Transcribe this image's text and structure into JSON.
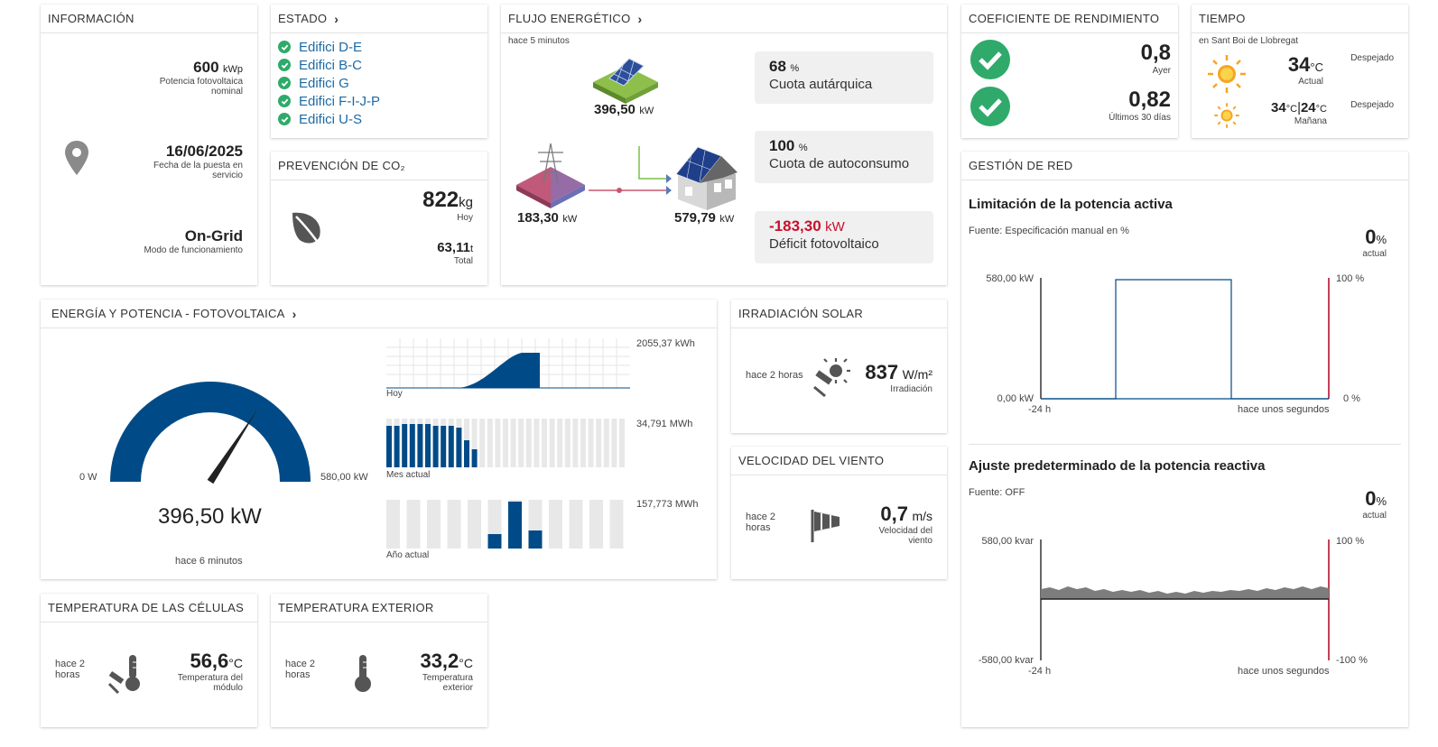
{
  "info": {
    "title": "INFORMACIÓN",
    "power_value": "600",
    "power_unit": "kWp",
    "power_label": "Potencia fotovoltaica nominal",
    "date_value": "16/06/2025",
    "date_label": "Fecha de la puesta en servicio",
    "mode_value": "On-Grid",
    "mode_label": "Modo de funcionamiento"
  },
  "estado": {
    "title": "ESTADO",
    "items": [
      "Edifici D-E",
      "Edifici B-C",
      "Edifici G",
      "Edifici F-I-J-P",
      "Edifici U-S"
    ]
  },
  "co2": {
    "title": "PREVENCIÓN DE CO₂",
    "today_value": "822",
    "today_unit": "kg",
    "today_label": "Hoy",
    "total_value": "63,11",
    "total_unit": "t",
    "total_label": "Total"
  },
  "flujo": {
    "title": "FLUJO ENERGÉTICO",
    "time": "hace 5 minutos",
    "pv_value": "396,50",
    "pv_unit": "kW",
    "grid_value": "183,30",
    "grid_unit": "kW",
    "house_value": "579,79",
    "house_unit": "kW",
    "q1_value": "68",
    "q1_unit": "%",
    "q1_label": "Cuota autárquica",
    "q2_value": "100",
    "q2_unit": "%",
    "q2_label": "Cuota de autoconsumo",
    "q3_value": "-183,30",
    "q3_unit": "kW",
    "q3_label": "Déficit fotovoltaico"
  },
  "coef": {
    "title": "COEFICIENTE DE RENDIMIENTO",
    "v1": "0,8",
    "l1": "Ayer",
    "v2": "0,82",
    "l2": "Últimos 30 días"
  },
  "tiempo": {
    "title": "TIEMPO",
    "location": "en Sant Boi de Llobregat",
    "now_temp": "34",
    "now_unit": "°C",
    "now_label": "Actual",
    "now_cond": "Despejado",
    "tom_temp_a": "34",
    "tom_unit_a": "°C",
    "tom_temp_b": "24",
    "tom_unit_b": "°C",
    "tom_label": "Mañana",
    "tom_cond": "Despejado"
  },
  "energia": {
    "title": "ENERGÍA Y POTENCIA - FOTOVOLTAICA",
    "gauge_min": "0 W",
    "gauge_max": "580,00 kW",
    "gauge_value": "396,50 kW",
    "gauge_time": "hace 6 minutos",
    "gauge_fraction": 0.684,
    "hoy_total": "2055,37 kWh",
    "hoy_label": "Hoy",
    "mes_total": "34,791 MWh",
    "mes_label": "Mes actual",
    "anio_total": "157,773 MWh",
    "anio_label": "Año actual"
  },
  "irradiacion": {
    "title": "IRRADIACIÓN SOLAR",
    "time": "hace 2 horas",
    "value": "837",
    "unit": "W/m²",
    "label": "Irradiación"
  },
  "viento": {
    "title": "VELOCIDAD DEL VIENTO",
    "time": "hace 2 horas",
    "value": "0,7",
    "unit": "m/s",
    "label": "Velocidad del viento"
  },
  "temp_celulas": {
    "title": "TEMPERATURA DE LAS CÉLULAS",
    "time": "hace 2 horas",
    "value": "56,6",
    "unit": "°C",
    "label": "Temperatura del módulo"
  },
  "temp_exterior": {
    "title": "TEMPERATURA EXTERIOR",
    "time": "hace 2 horas",
    "value": "33,2",
    "unit": "°C",
    "label": "Temperatura exterior"
  },
  "gestion": {
    "title": "GESTIÓN DE RED",
    "activa_title": "Limitación de la potencia activa",
    "activa_source": "Fuente: Especificación manual en %",
    "activa_pct": "0",
    "activa_pct_unit": "%",
    "activa_pct_label": "actual",
    "activa_ymax": "580,00 kW",
    "activa_ymin": "0,00 kW",
    "activa_rmax": "100 %",
    "activa_rmin": "0 %",
    "activa_xstart": "-24 h",
    "activa_xend": "hace unos segundos",
    "reactiva_title": "Ajuste predeterminado de la potencia reactiva",
    "reactiva_source": "Fuente: OFF",
    "reactiva_pct": "0",
    "reactiva_pct_unit": "%",
    "reactiva_pct_label": "actual",
    "reactiva_ymax": "580,00 kvar",
    "reactiva_ymin": "-580,00 kvar",
    "reactiva_rmax": "100 %",
    "reactiva_rmin": "-100 %",
    "reactiva_xstart": "-24 h",
    "reactiva_xend": "hace unos segundos"
  },
  "colors": {
    "accent_blue": "#004b87",
    "check_green": "#2faa6a",
    "deficit_red": "#c8102e",
    "bar_gray": "#e8e8e8"
  }
}
